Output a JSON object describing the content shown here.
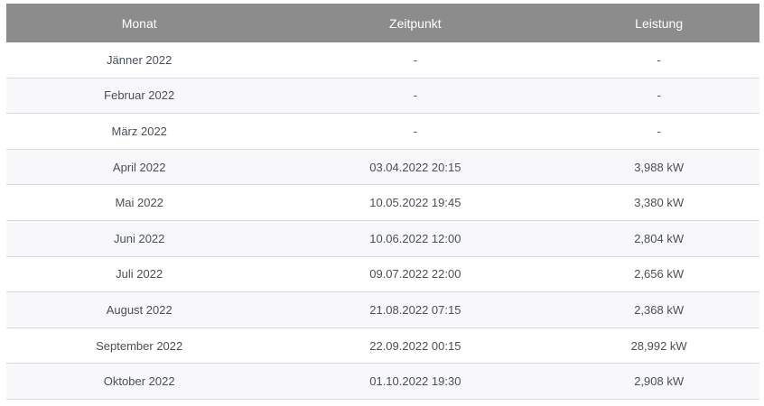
{
  "table": {
    "columns": [
      {
        "key": "monat",
        "label": "Monat"
      },
      {
        "key": "zeitpunkt",
        "label": "Zeitpunkt"
      },
      {
        "key": "leistung",
        "label": "Leistung"
      }
    ],
    "rows": [
      {
        "monat": "Jänner 2022",
        "zeitpunkt": "-",
        "leistung": "-"
      },
      {
        "monat": "Februar 2022",
        "zeitpunkt": "-",
        "leistung": "-"
      },
      {
        "monat": "März 2022",
        "zeitpunkt": "-",
        "leistung": "-"
      },
      {
        "monat": "April 2022",
        "zeitpunkt": "03.04.2022 20:15",
        "leistung": "3,988 kW"
      },
      {
        "monat": "Mai 2022",
        "zeitpunkt": "10.05.2022 19:45",
        "leistung": "3,380 kW"
      },
      {
        "monat": "Juni 2022",
        "zeitpunkt": "10.06.2022 12:00",
        "leistung": "2,804 kW"
      },
      {
        "monat": "Juli 2022",
        "zeitpunkt": "09.07.2022 22:00",
        "leistung": "2,656 kW"
      },
      {
        "monat": "August 2022",
        "zeitpunkt": "21.08.2022 07:15",
        "leistung": "2,368 kW"
      },
      {
        "monat": "September 2022",
        "zeitpunkt": "22.09.2022 00:15",
        "leistung": "28,992 kW"
      },
      {
        "monat": "Oktober 2022",
        "zeitpunkt": "01.10.2022 19:30",
        "leistung": "2,908 kW"
      }
    ]
  },
  "colors": {
    "header_bg": "#8c8c8c",
    "header_text": "#ffffff",
    "row_text": "#495057",
    "stripe_bg": "#f8f8fb",
    "row_border": "#d9d9e0"
  }
}
